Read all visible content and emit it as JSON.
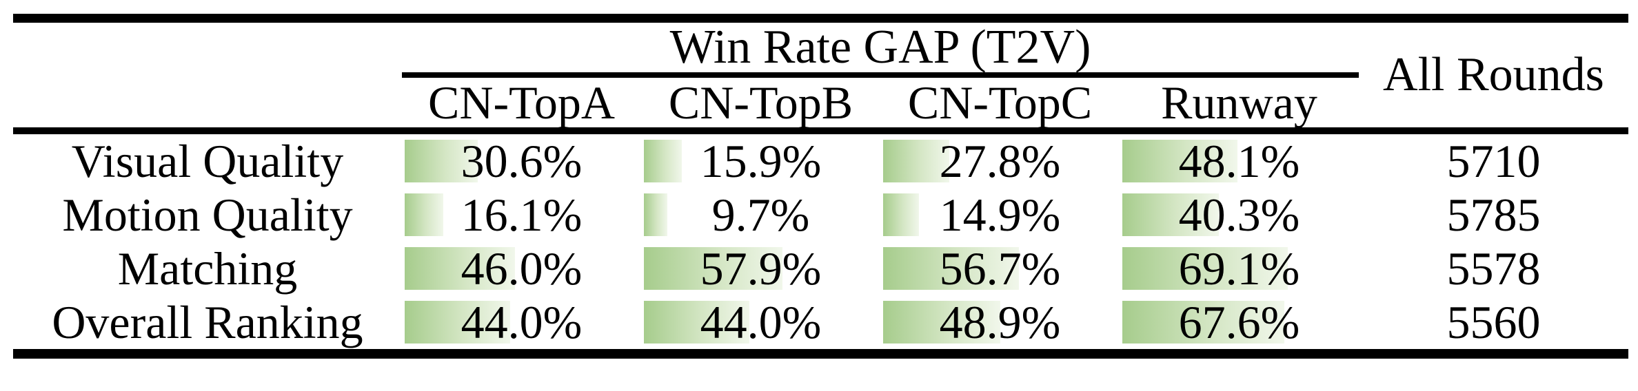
{
  "table": {
    "group_header": "Win Rate GAP (T2V)",
    "all_rounds_header": "All Rounds",
    "model_columns": [
      "CN-TopA",
      "CN-TopB",
      "CN-TopC",
      "Runway"
    ],
    "rows": [
      {
        "label": "Visual Quality",
        "win_rates": [
          "30.6%",
          "15.9%",
          "27.8%",
          "48.1%"
        ],
        "win_rate_values": [
          30.6,
          15.9,
          27.8,
          48.1
        ],
        "all_rounds": "5710"
      },
      {
        "label": "Motion Quality",
        "win_rates": [
          "16.1%",
          "9.7%",
          "14.9%",
          "40.3%"
        ],
        "win_rate_values": [
          16.1,
          9.7,
          14.9,
          40.3
        ],
        "all_rounds": "5785"
      },
      {
        "label": "Matching",
        "win_rates": [
          "46.0%",
          "57.9%",
          "56.7%",
          "69.1%"
        ],
        "win_rate_values": [
          46.0,
          57.9,
          56.7,
          69.1
        ],
        "all_rounds": "5578"
      },
      {
        "label": "Overall Ranking",
        "win_rates": [
          "44.0%",
          "44.0%",
          "48.9%",
          "67.6%"
        ],
        "win_rate_values": [
          44.0,
          44.0,
          48.9,
          67.6
        ],
        "all_rounds": "5560"
      }
    ],
    "colors": {
      "bar_gradient_start": "#a6cc8c",
      "bar_gradient_mid": "#d4e6c4",
      "bar_gradient_end": "#f1f7eb",
      "rule_color": "#000000",
      "background": "#ffffff",
      "text": "#000000"
    }
  },
  "chart_data": {
    "type": "table",
    "title": "Win Rate GAP (T2V)",
    "columns": [
      "",
      "CN-TopA",
      "CN-TopB",
      "CN-TopC",
      "Runway",
      "All Rounds"
    ],
    "categories": [
      "Visual Quality",
      "Motion Quality",
      "Matching",
      "Overall Ranking"
    ],
    "series": [
      {
        "name": "CN-TopA",
        "values": [
          30.6,
          16.1,
          46.0,
          44.0
        ],
        "unit": "%"
      },
      {
        "name": "CN-TopB",
        "values": [
          15.9,
          9.7,
          57.9,
          44.0
        ],
        "unit": "%"
      },
      {
        "name": "CN-TopC",
        "values": [
          27.8,
          14.9,
          56.7,
          48.9
        ],
        "unit": "%"
      },
      {
        "name": "Runway",
        "values": [
          48.1,
          40.3,
          69.1,
          67.6
        ],
        "unit": "%"
      },
      {
        "name": "All Rounds",
        "values": [
          5710,
          5785,
          5578,
          5560
        ],
        "unit": ""
      }
    ],
    "layout_hints": {
      "bars_in_cells": true,
      "bar_scale": "cell width = 100%",
      "bar_color": "green gradient fading right"
    }
  }
}
